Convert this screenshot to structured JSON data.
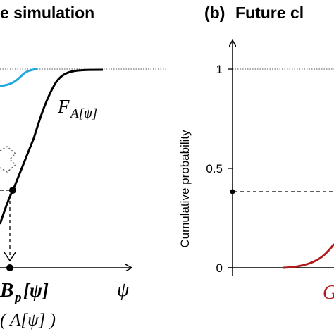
{
  "panel_a": {
    "title": "e simulation",
    "curve_label_main": "F",
    "curve_label_sub": "A[ψ]",
    "x_symbol": "ψ",
    "point_label_bold": "B",
    "point_label_sub": "p",
    "point_label_arg": "[ψ]",
    "bottom_label": "( A[ψ] )",
    "colors": {
      "main_curve": "#000000",
      "upper_curve": "#1ea7e1",
      "dotted": "#555555"
    }
  },
  "panel_b": {
    "tag": "(b)",
    "title": "Future cl",
    "y_axis_label": "Cumulative probability",
    "y_ticks": [
      "0",
      "0.5",
      "1"
    ],
    "curve_label": "G",
    "colors": {
      "curve": "#b01c1c"
    }
  }
}
